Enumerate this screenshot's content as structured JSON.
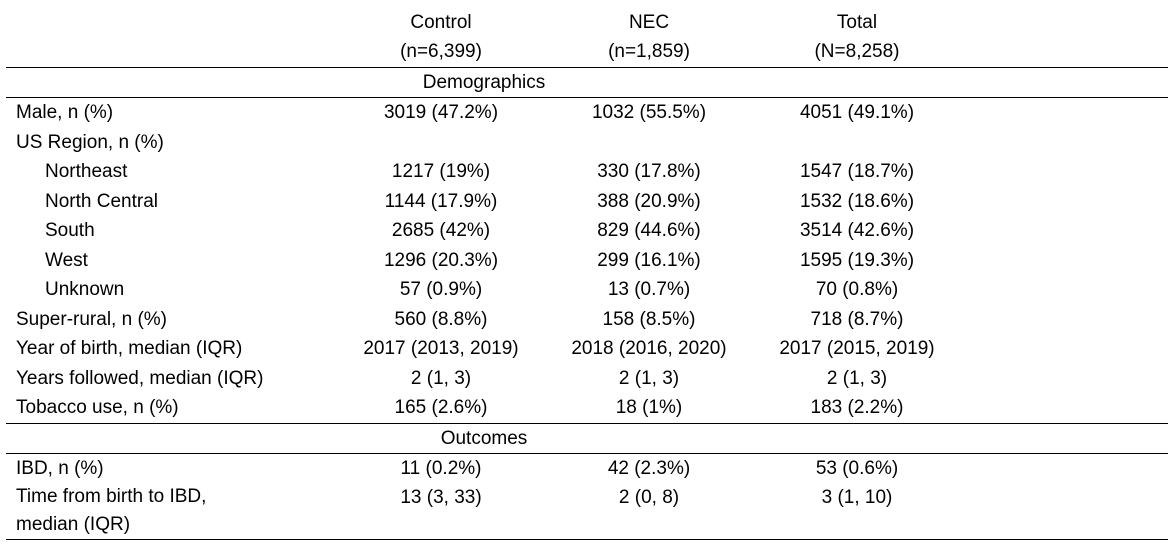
{
  "columns": [
    {
      "name": "Control",
      "n": "(n=6,399)"
    },
    {
      "name": "NEC",
      "n": "(n=1,859)"
    },
    {
      "name": "Total",
      "n": "(N=8,258)"
    }
  ],
  "sections": [
    {
      "title": "Demographics",
      "rows": [
        {
          "label": "Male, n (%)",
          "values": [
            "3019 (47.2%)",
            "1032 (55.5%)",
            "4051 (49.1%)"
          ]
        },
        {
          "label": "US Region, n (%)",
          "values": [
            "",
            "",
            ""
          ]
        },
        {
          "label": "Northeast",
          "values": [
            "1217 (19%)",
            "330 (17.8%)",
            "1547 (18.7%)"
          ]
        },
        {
          "label": "North Central",
          "values": [
            "1144 (17.9%)",
            "388 (20.9%)",
            "1532 (18.6%)"
          ]
        },
        {
          "label": "South",
          "values": [
            "2685 (42%)",
            "829 (44.6%)",
            "3514 (42.6%)"
          ]
        },
        {
          "label": "West",
          "values": [
            "1296 (20.3%)",
            "299 (16.1%)",
            "1595 (19.3%)"
          ]
        },
        {
          "label": "Unknown",
          "values": [
            "57 (0.9%)",
            "13 (0.7%)",
            "70 (0.8%)"
          ]
        },
        {
          "label": "Super-rural, n (%)",
          "values": [
            "560 (8.8%)",
            "158 (8.5%)",
            "718 (8.7%)"
          ]
        },
        {
          "label": "Year of birth, median (IQR)",
          "values": [
            "2017 (2013, 2019)",
            "2018 (2016, 2020)",
            "2017 (2015, 2019)"
          ]
        },
        {
          "label": "Years followed, median (IQR)",
          "values": [
            "2 (1, 3)",
            "2 (1, 3)",
            "2 (1, 3)"
          ]
        },
        {
          "label": "Tobacco use, n (%)",
          "values": [
            "165 (2.6%)",
            "18 (1%)",
            "183 (2.2%)"
          ]
        }
      ]
    },
    {
      "title": "Outcomes",
      "rows": [
        {
          "label": "IBD, n (%)",
          "values": [
            "11 (0.2%)",
            "42 (2.3%)",
            "53 (0.6%)"
          ]
        },
        {
          "label_line1": "Time from birth to IBD,",
          "label_line2": "median (IQR)",
          "values": [
            "13 (3, 33)",
            "2 (0, 8)",
            "3 (1, 10)"
          ]
        }
      ]
    }
  ]
}
